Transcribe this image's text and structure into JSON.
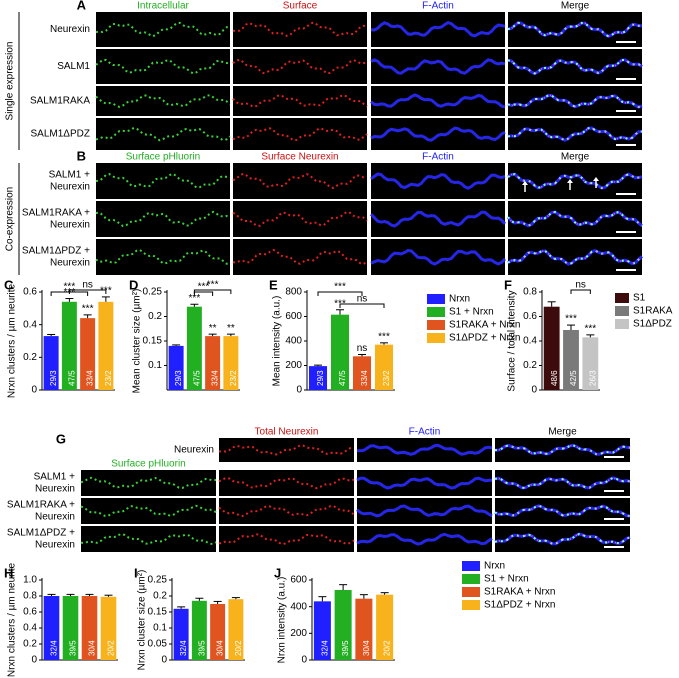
{
  "panels": {
    "A": {
      "letter": "A",
      "side_label": "Single expression",
      "columns": [
        "Intracellular",
        "Surface",
        "F-Actin",
        "Merge"
      ],
      "rows": [
        [
          "Neurexin"
        ],
        [
          "SALM1"
        ],
        [
          "SALM1RAKA"
        ],
        [
          "SALM1ΔPDZ"
        ]
      ]
    },
    "B": {
      "letter": "B",
      "side_label": "Co-expression",
      "columns": [
        "Surface pHluorin",
        "Surface Neurexin",
        "F-Actin",
        "Merge"
      ],
      "rows": [
        [
          "SALM1 +",
          "Neurexin"
        ],
        [
          "SALM1RAKA +",
          "Neurexin"
        ],
        [
          "SALM1ΔPDZ +",
          "Neurexin"
        ]
      ]
    },
    "G": {
      "letter": "G",
      "columns": [
        "Surface pHluorin",
        "Total Neurexin",
        "F-Actin",
        "Merge"
      ],
      "rows": [
        [
          "Neurexin"
        ],
        [
          "SALM1 +",
          "Neurexin"
        ],
        [
          "SALM1RAKA +",
          "Neurexin"
        ],
        [
          "SALM1ΔPDZ +",
          "Neurexin"
        ]
      ]
    }
  },
  "legends": [
    {
      "items": [
        {
          "name": "Nrxn",
          "color": "#1f1fff"
        },
        {
          "name": "S1 + Nrxn",
          "color": "#22b022"
        },
        {
          "name": "S1RAKA + Nrxn",
          "color": "#e0551f"
        },
        {
          "name": "S1ΔPDZ + Nrxn",
          "color": "#f7b21c"
        }
      ]
    },
    {
      "items": [
        {
          "name": "S1",
          "color": "#3d0b0b"
        },
        {
          "name": "S1RAKA",
          "color": "#7a7a7a"
        },
        {
          "name": "S1ΔPDZ",
          "color": "#c4c4c4"
        }
      ]
    },
    {
      "items": [
        {
          "name": "Nrxn",
          "color": "#1f1fff"
        },
        {
          "name": "S1 + Nrxn",
          "color": "#22b022"
        },
        {
          "name": "S1RAKA + Nrxn",
          "color": "#e0551f"
        },
        {
          "name": "S1ΔPDZ + Nrxn",
          "color": "#f7b21c"
        }
      ]
    }
  ],
  "chart_data": [
    {
      "type": "bar",
      "letter": "C",
      "ylabel": "Nrxn clusters / µm neurite",
      "ylim": [
        0,
        0.6
      ],
      "yticks": [
        0,
        0.2,
        0.4,
        0.6
      ],
      "values": [
        0.33,
        0.54,
        0.44,
        0.54
      ],
      "errors": [
        0.01,
        0.02,
        0.02,
        0.03
      ],
      "n_labels": [
        "29/3",
        "47/5",
        "33/4",
        "23/2"
      ],
      "colors": [
        "#1f1fff",
        "#22b022",
        "#e0551f",
        "#f7b21c"
      ],
      "annotations": [
        "***",
        "***",
        "***",
        "***",
        "ns"
      ]
    },
    {
      "type": "bar",
      "letter": "D",
      "ylabel": "Mean cluster size (µm²)",
      "ylim": [
        0.05,
        0.25
      ],
      "yticks": [
        0.1,
        0.15,
        0.2,
        0.25
      ],
      "values": [
        0.14,
        0.22,
        0.16,
        0.16
      ],
      "errors": [
        0.002,
        0.005,
        0.004,
        0.004
      ],
      "n_labels": [
        "29/3",
        "47/5",
        "33/4",
        "23/2"
      ],
      "colors": [
        "#1f1fff",
        "#22b022",
        "#e0551f",
        "#f7b21c"
      ],
      "annotations": [
        "***",
        "**",
        "**",
        "***",
        "***"
      ]
    },
    {
      "type": "bar",
      "letter": "E",
      "ylabel": "Mean intensity (a.u.)",
      "ylim": [
        0,
        800
      ],
      "yticks": [
        0,
        200,
        400,
        600,
        800
      ],
      "values": [
        195,
        615,
        275,
        370
      ],
      "errors": [
        8,
        40,
        15,
        15
      ],
      "n_labels": [
        "29/3",
        "47/5",
        "33/4",
        "23/2"
      ],
      "colors": [
        "#1f1fff",
        "#22b022",
        "#e0551f",
        "#f7b21c"
      ],
      "annotations": [
        "***",
        "ns",
        "***",
        "***",
        "ns"
      ]
    },
    {
      "type": "bar",
      "letter": "F",
      "ylabel": "Surface / total intensity",
      "ylim": [
        0,
        0.8
      ],
      "yticks": [
        0,
        0.2,
        0.4,
        0.6,
        0.8
      ],
      "values": [
        0.68,
        0.49,
        0.43
      ],
      "errors": [
        0.04,
        0.04,
        0.02
      ],
      "n_labels": [
        "48/6",
        "42/5",
        "26/3"
      ],
      "colors": [
        "#3d0b0b",
        "#7a7a7a",
        "#c4c4c4"
      ],
      "annotations": [
        "***",
        "***",
        "ns"
      ]
    },
    {
      "type": "bar",
      "letter": "H",
      "ylabel": "Nrxn clusters / µm neurite",
      "ylim": [
        0,
        1
      ],
      "yticks": [
        0,
        0.2,
        0.4,
        0.6,
        0.8,
        {
          "value": 1,
          "label": "1.0"
        }
      ],
      "values": [
        0.8,
        0.8,
        0.8,
        0.79
      ],
      "errors": [
        0.02,
        0.02,
        0.02,
        0.02
      ],
      "n_labels": [
        "32/4",
        "39/5",
        "30/4",
        "20/2"
      ],
      "colors": [
        "#1f1fff",
        "#22b022",
        "#e0551f",
        "#f7b21c"
      ]
    },
    {
      "type": "bar",
      "letter": "I",
      "ylabel": "Nrxn cluster size (µm²)",
      "ylim": [
        0,
        0.25
      ],
      "yticks": [
        0,
        0.05,
        0.1,
        0.15,
        0.2,
        0.25
      ],
      "values": [
        0.16,
        0.185,
        0.175,
        0.19
      ],
      "errors": [
        0.006,
        0.008,
        0.008,
        0.005
      ],
      "n_labels": [
        "32/4",
        "39/5",
        "30/4",
        "20/2"
      ],
      "colors": [
        "#1f1fff",
        "#22b022",
        "#e0551f",
        "#f7b21c"
      ]
    },
    {
      "type": "bar",
      "letter": "J",
      "ylabel": "Nrxn intensity (a.u.)",
      "ylim": [
        0,
        600
      ],
      "yticks": [
        0,
        200,
        400,
        600
      ],
      "values": [
        440,
        525,
        460,
        490
      ],
      "errors": [
        35,
        40,
        30,
        15
      ],
      "n_labels": [
        "32/4",
        "39/5",
        "30/4",
        "20/2"
      ],
      "colors": [
        "#1f1fff",
        "#22b022",
        "#e0551f",
        "#f7b21c"
      ]
    }
  ]
}
